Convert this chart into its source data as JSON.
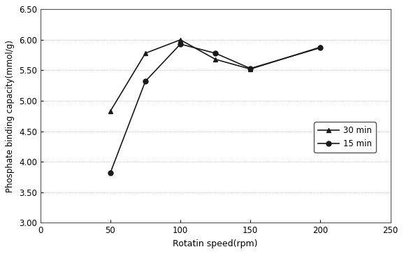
{
  "x_30min": [
    50,
    75,
    100,
    125,
    150,
    200
  ],
  "y_30min": [
    4.83,
    5.78,
    6.0,
    5.68,
    5.52,
    5.88
  ],
  "x_15min": [
    50,
    75,
    100,
    125,
    150,
    200
  ],
  "y_15min": [
    3.82,
    5.32,
    5.93,
    5.78,
    5.53,
    5.87
  ],
  "xlabel": "Rotatin speed(rpm)",
  "ylabel": "Phosphate binding capacity(mmol/g)",
  "xlim": [
    0,
    250
  ],
  "ylim": [
    3.0,
    6.5
  ],
  "yticks": [
    3.0,
    3.5,
    4.0,
    4.5,
    5.0,
    5.5,
    6.0,
    6.5
  ],
  "xticks": [
    0,
    50,
    100,
    150,
    200,
    250
  ],
  "legend_30min": "30 min",
  "legend_15min": "15 min",
  "line_color": "#1a1a1a",
  "grid_color": "#aaaaaa",
  "marker_30min": "^",
  "marker_15min": "o",
  "figsize": [
    5.78,
    3.63
  ],
  "dpi": 100
}
